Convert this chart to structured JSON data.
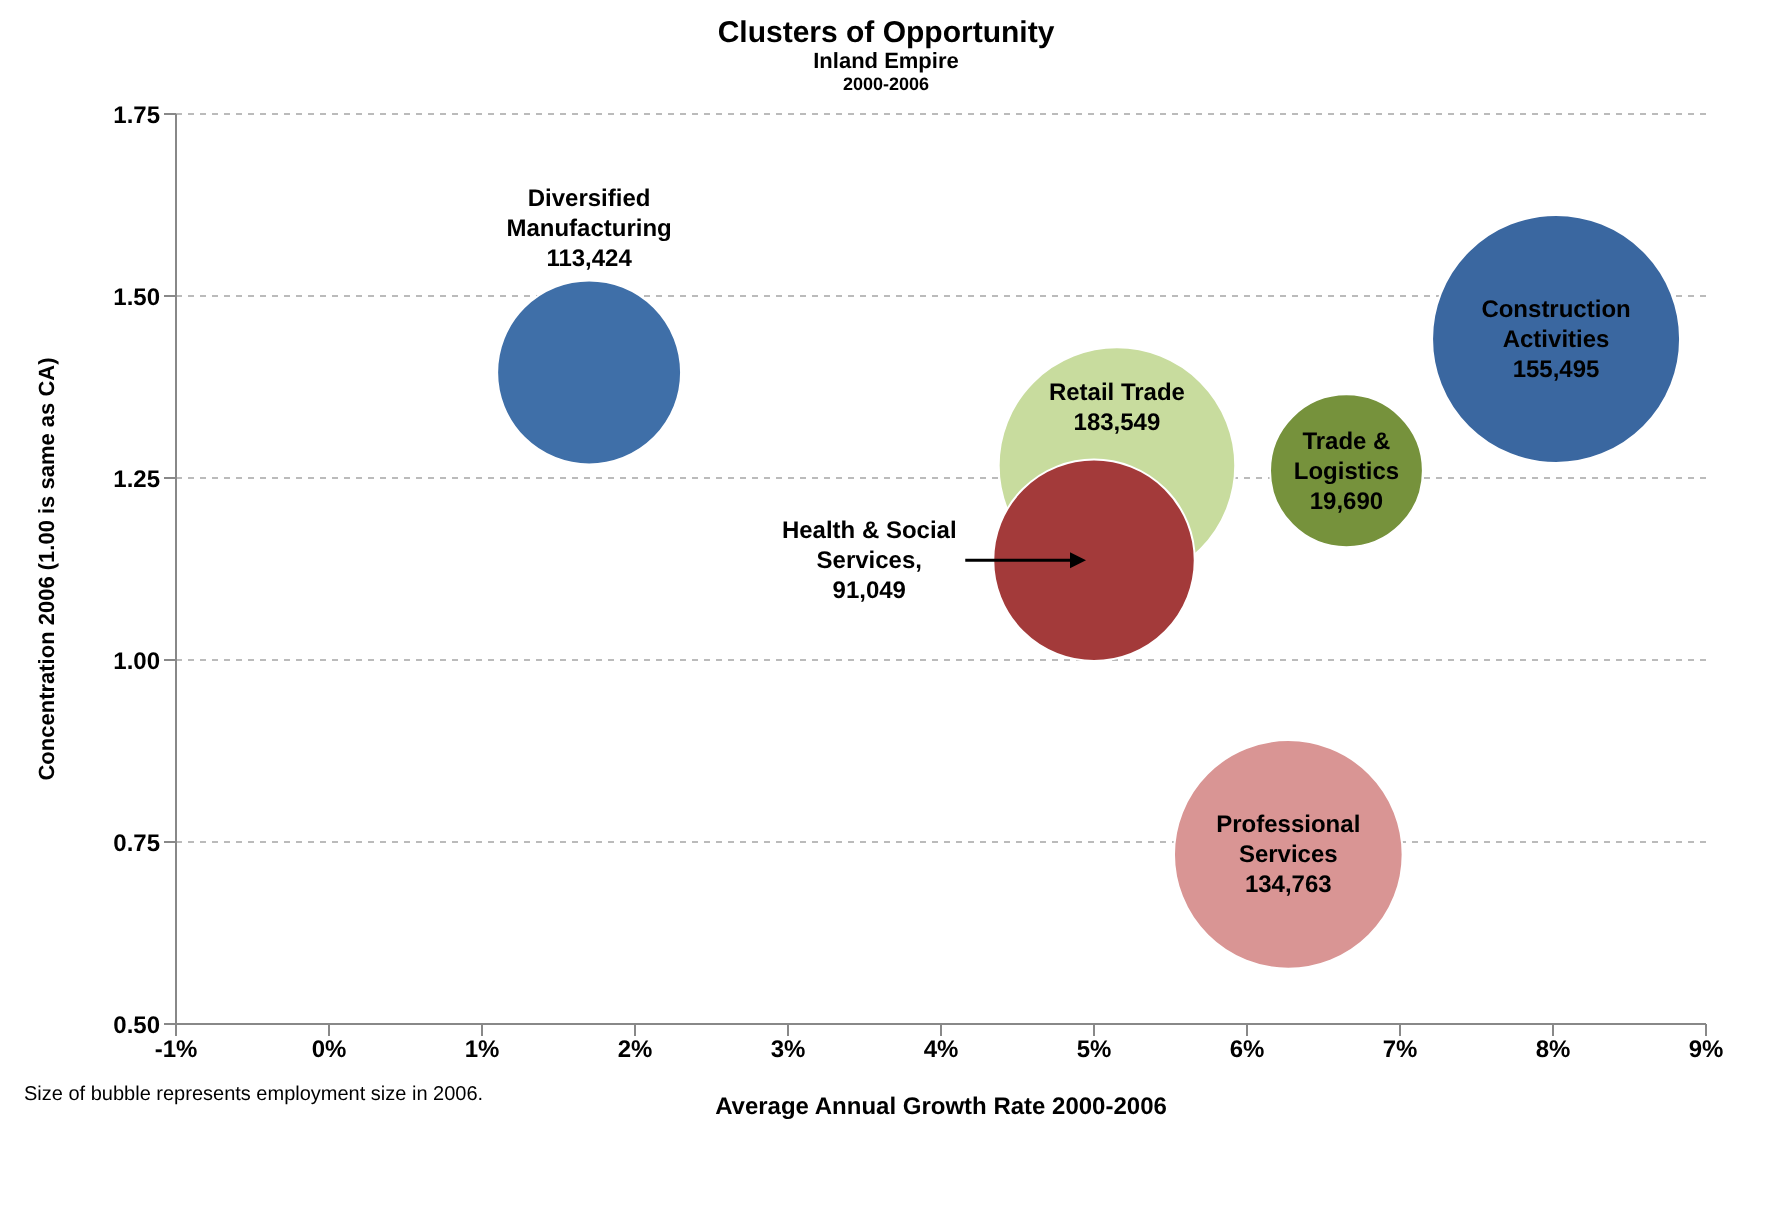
{
  "chart_data": {
    "type": "bubble",
    "title": "Clusters of Opportunity",
    "subtitle": "Inland Empire\n2000-2006",
    "xlabel": "Average Annual Growth Rate 2000-2006",
    "ylabel": "Concentration 2006 (1.00 is same as CA)",
    "xlim": [
      -1,
      9
    ],
    "xticks": [
      {
        "value": -1,
        "label": "-1%"
      },
      {
        "value": 0,
        "label": "0%"
      },
      {
        "value": 1,
        "label": "1%"
      },
      {
        "value": 2,
        "label": "2%"
      },
      {
        "value": 3,
        "label": "3%"
      },
      {
        "value": 4,
        "label": "4%"
      },
      {
        "value": 5,
        "label": "5%"
      },
      {
        "value": 6,
        "label": "6%"
      },
      {
        "value": 7,
        "label": "7%"
      },
      {
        "value": 8,
        "label": "8%"
      },
      {
        "value": 9,
        "label": "9%"
      }
    ],
    "ylim": [
      0.5,
      1.75
    ],
    "yticks": [
      {
        "value": 0.5,
        "label": "0.50"
      },
      {
        "value": 0.75,
        "label": "0.75"
      },
      {
        "value": 1,
        "label": "1.00"
      },
      {
        "value": 1.25,
        "label": "1.25"
      },
      {
        "value": 1.5,
        "label": "1.50"
      },
      {
        "value": 1.75,
        "label": "1.75"
      }
    ],
    "grid": "y",
    "series": [
      {
        "name": "Diversified Manufacturing",
        "color": "#3f6fa8",
        "x": [
          1.7
        ],
        "values": [
          1.395
        ],
        "sizes": [
          0.55
        ]
      },
      {
        "name": "Retail Trade",
        "color": "#c8dc9e",
        "x": [
          5.15
        ],
        "values": [
          1.267
        ],
        "sizes": [
          0.91
        ]
      },
      {
        "name": "Health & Social Services,",
        "color": "#a33a3a",
        "x": [
          5.0
        ],
        "values": [
          1.137
        ],
        "sizes": [
          0.66
        ]
      },
      {
        "name": "Trade & Logistics",
        "color": "#76923c",
        "x": [
          6.65
        ],
        "values": [
          1.26
        ],
        "sizes": [
          0.38
        ]
      },
      {
        "name": "Construction Activities",
        "color": "#3a67a0",
        "x": [
          8.02
        ],
        "values": [
          1.441
        ],
        "sizes": [
          1
        ]
      },
      {
        "name": "Professional Services",
        "color": "#d99594",
        "x": [
          6.27
        ],
        "values": [
          0.733
        ],
        "sizes": [
          0.85
        ]
      }
    ],
    "annotations": [
      "Size of bubble represents employment size in 2006.",
      "113,424",
      "183,549",
      "91,049",
      "19,690",
      "155,495",
      "134,763"
    ]
  }
}
